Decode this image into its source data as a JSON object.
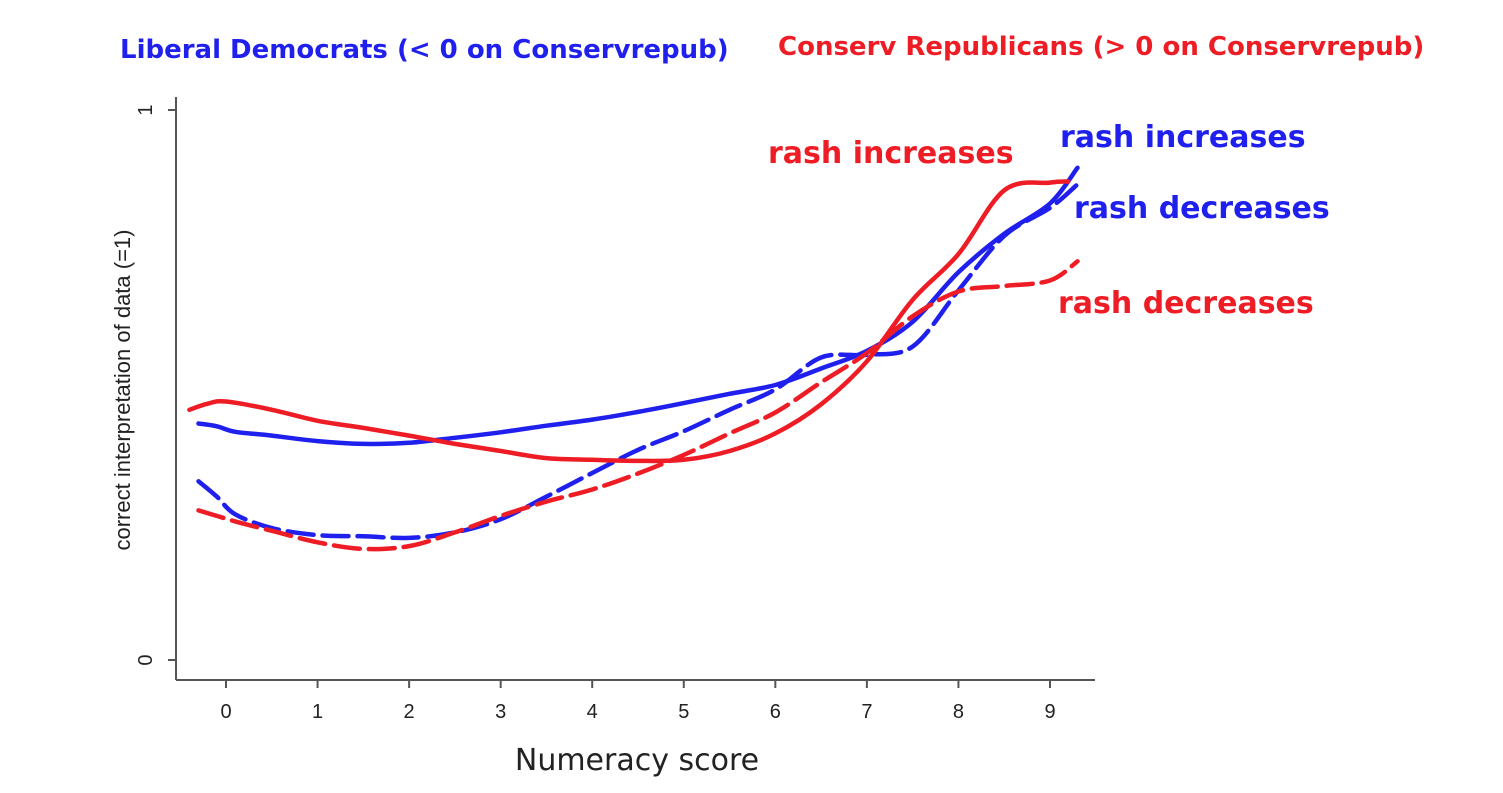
{
  "colors": {
    "blue": "#2020ee",
    "red": "#ee1c24",
    "axis": "#555555"
  },
  "chart_data": {
    "type": "line",
    "title": "",
    "xlabel": "Numeracy score",
    "ylabel": "correct interpretation of data (=1)",
    "xlim": [
      -0.5,
      9.5
    ],
    "ylim": [
      0,
      1
    ],
    "xticks": [
      "0",
      "1",
      "2",
      "3",
      "4",
      "5",
      "6",
      "7",
      "8",
      "9"
    ],
    "yticks": [
      "0",
      "1"
    ],
    "grid": false,
    "legend": {
      "placement": "top",
      "entries": [
        {
          "label": "Liberal Democrats (< 0 on Conservrepub)",
          "color": "blue"
        },
        {
          "label": "Conserv Republicans (> 0 on Conservrepub)",
          "color": "red"
        }
      ]
    },
    "annotations": [
      {
        "text": "rash increases",
        "color": "red"
      },
      {
        "text": "rash increases",
        "color": "blue"
      },
      {
        "text": "rash decreases",
        "color": "blue"
      },
      {
        "text": "rash decreases",
        "color": "red"
      }
    ],
    "series": [
      {
        "color": "blue",
        "dash": "solid",
        "x": [
          -0.3,
          -0.1,
          0.1,
          0.5,
          1.0,
          1.5,
          2.0,
          2.5,
          3.0,
          3.5,
          4.0,
          4.5,
          5.0,
          5.5,
          6.0,
          6.5,
          7.0,
          7.5,
          8.0,
          8.5,
          9.0,
          9.3
        ],
        "y": [
          0.43,
          0.425,
          0.415,
          0.408,
          0.398,
          0.393,
          0.395,
          0.404,
          0.414,
          0.426,
          0.437,
          0.451,
          0.467,
          0.484,
          0.5,
          0.53,
          0.562,
          0.615,
          0.705,
          0.775,
          0.83,
          0.895
        ]
      },
      {
        "color": "blue",
        "dash": "dashed",
        "x": [
          -0.3,
          -0.1,
          0.1,
          0.5,
          1.0,
          1.5,
          2.0,
          2.5,
          3.0,
          3.5,
          4.0,
          4.5,
          5.0,
          5.5,
          6.0,
          6.5,
          7.0,
          7.5,
          8.0,
          8.5,
          9.0,
          9.3
        ],
        "y": [
          0.325,
          0.297,
          0.265,
          0.24,
          0.227,
          0.225,
          0.222,
          0.232,
          0.256,
          0.297,
          0.34,
          0.382,
          0.416,
          0.455,
          0.492,
          0.55,
          0.555,
          0.57,
          0.672,
          0.771,
          0.822,
          0.865
        ]
      },
      {
        "color": "red",
        "dash": "solid",
        "x": [
          -0.4,
          -0.2,
          0.0,
          0.5,
          1.0,
          1.5,
          2.0,
          2.5,
          3.0,
          3.5,
          4.0,
          4.5,
          5.0,
          5.5,
          6.0,
          6.5,
          7.0,
          7.5,
          8.0,
          8.5,
          9.0,
          9.2
        ],
        "y": [
          0.455,
          0.466,
          0.47,
          0.455,
          0.435,
          0.422,
          0.408,
          0.393,
          0.38,
          0.367,
          0.364,
          0.362,
          0.364,
          0.38,
          0.412,
          0.465,
          0.543,
          0.655,
          0.738,
          0.854,
          0.868,
          0.87
        ]
      },
      {
        "color": "red",
        "dash": "dashed",
        "x": [
          -0.3,
          -0.1,
          0.1,
          0.5,
          1.0,
          1.5,
          2.0,
          2.5,
          3.0,
          3.5,
          4.0,
          4.5,
          5.0,
          5.5,
          6.0,
          6.5,
          7.0,
          7.5,
          8.0,
          8.5,
          9.0,
          9.3
        ],
        "y": [
          0.272,
          0.262,
          0.252,
          0.235,
          0.214,
          0.202,
          0.207,
          0.232,
          0.262,
          0.288,
          0.31,
          0.339,
          0.373,
          0.412,
          0.45,
          0.505,
          0.558,
          0.625,
          0.67,
          0.68,
          0.69,
          0.725
        ]
      }
    ]
  }
}
